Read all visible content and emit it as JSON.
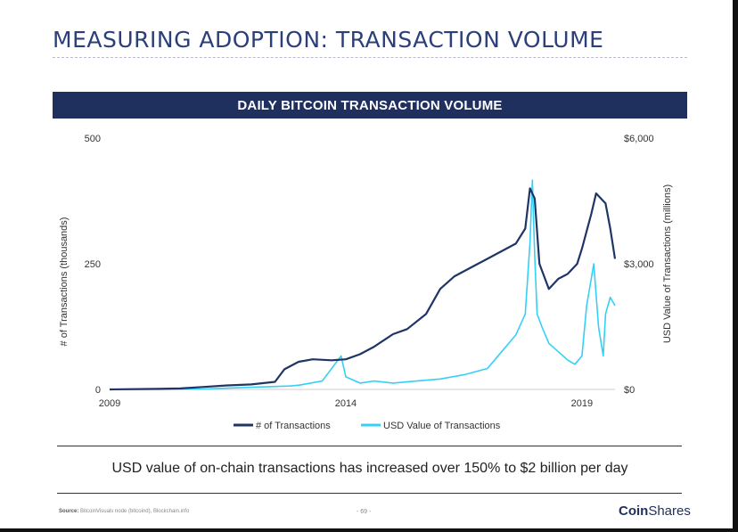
{
  "slide": {
    "title": "MEASURING ADOPTION: TRANSACTION VOLUME",
    "footnote": "USD value of on-chain transactions has increased over 150% to $2 billion per day",
    "source_label": "Source:",
    "source_text": "BitcoinVisuals node (bitcoind), Blockchain.info",
    "page_number": "- 69 -",
    "brand_bold": "Coin",
    "brand_rest": "Shares"
  },
  "colors": {
    "banner": "#1f2f5e",
    "transactions": "#1f3566",
    "usd_value": "#35d0f5"
  },
  "chart_data": {
    "type": "line",
    "title": "DAILY BITCOIN TRANSACTION VOLUME",
    "ylabel": "# of Transactions (thousands)",
    "y2label": "USD Value of Transactions (millions)",
    "xlim": [
      2009,
      2019.7
    ],
    "ylim": [
      0,
      500
    ],
    "y2lim": [
      0,
      6000
    ],
    "x_ticks": [
      "2009",
      "2014",
      "2019"
    ],
    "x_tick_values": [
      2009,
      2014,
      2019
    ],
    "y_ticks": [
      "0",
      "250",
      "500"
    ],
    "y_tick_values": [
      0,
      250,
      500
    ],
    "y2_ticks": [
      "$0",
      "$3,000",
      "$6,000"
    ],
    "y2_tick_values": [
      0,
      3000,
      6000
    ],
    "legend_position": "bottom",
    "series": [
      {
        "name": "# of Transactions",
        "axis": "left",
        "x": [
          2009.0,
          2010.0,
          2010.5,
          2011.0,
          2011.5,
          2012.0,
          2012.5,
          2012.7,
          2013.0,
          2013.3,
          2013.7,
          2014.0,
          2014.3,
          2014.6,
          2015.0,
          2015.3,
          2015.7,
          2016.0,
          2016.3,
          2016.6,
          2017.0,
          2017.3,
          2017.6,
          2017.8,
          2017.9,
          2018.0,
          2018.1,
          2018.3,
          2018.5,
          2018.7,
          2018.9,
          2019.0,
          2019.2,
          2019.3,
          2019.5,
          2019.6,
          2019.7
        ],
        "y": [
          0,
          1,
          2,
          5,
          8,
          10,
          15,
          40,
          55,
          60,
          58,
          60,
          70,
          85,
          110,
          120,
          150,
          200,
          225,
          240,
          260,
          275,
          290,
          320,
          400,
          380,
          250,
          200,
          220,
          230,
          250,
          280,
          350,
          390,
          370,
          320,
          260
        ]
      },
      {
        "name": "USD Value of Transactions",
        "axis": "right",
        "x": [
          2009.0,
          2010.0,
          2011.0,
          2012.0,
          2012.8,
          2013.0,
          2013.5,
          2013.9,
          2014.0,
          2014.3,
          2014.6,
          2015.0,
          2015.5,
          2016.0,
          2016.5,
          2017.0,
          2017.3,
          2017.6,
          2017.8,
          2017.9,
          2017.95,
          2018.0,
          2018.05,
          2018.15,
          2018.3,
          2018.5,
          2018.7,
          2018.85,
          2019.0,
          2019.1,
          2019.25,
          2019.35,
          2019.45,
          2019.5,
          2019.6,
          2019.7
        ],
        "y": [
          0,
          0,
          10,
          50,
          80,
          100,
          200,
          800,
          300,
          150,
          200,
          150,
          200,
          250,
          350,
          500,
          900,
          1300,
          1800,
          3500,
          5000,
          3200,
          1800,
          1500,
          1100,
          900,
          700,
          600,
          800,
          2000,
          3000,
          1500,
          800,
          1800,
          2200,
          2000
        ]
      }
    ]
  }
}
